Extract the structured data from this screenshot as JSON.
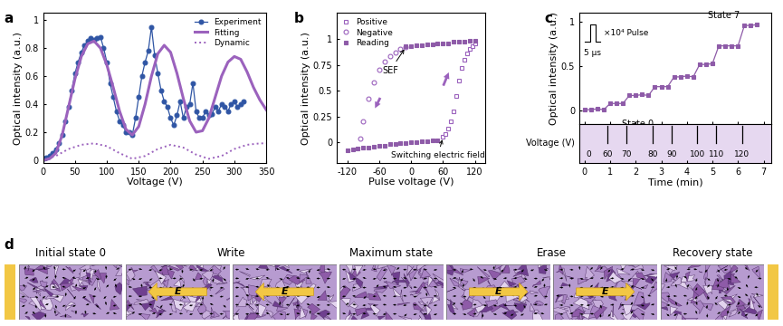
{
  "chart_data": [
    {
      "panel_label": "a",
      "type": "line",
      "x_label": "Voltage (V)",
      "y_label": "Optical intensity (a.u.)",
      "xlim": [
        0,
        350
      ],
      "xticks": [
        0,
        50,
        100,
        150,
        200,
        250,
        300,
        350
      ],
      "ylim": [
        -0.02,
        1.05
      ],
      "yticks": [
        0,
        0.2,
        0.4,
        0.6,
        0.8,
        1
      ],
      "legend": "upper right",
      "series": [
        {
          "name": "Experiment",
          "color": "#2f55a4",
          "marker": "circle",
          "line_style": "solid",
          "x": [
            0,
            5,
            10,
            15,
            20,
            25,
            30,
            35,
            40,
            45,
            50,
            55,
            60,
            65,
            70,
            75,
            80,
            85,
            90,
            95,
            100,
            105,
            110,
            115,
            120,
            125,
            130,
            135,
            140,
            145,
            150,
            155,
            160,
            165,
            170,
            175,
            180,
            185,
            190,
            195,
            200,
            205,
            210,
            215,
            220,
            225,
            230,
            235,
            240,
            245,
            250,
            255,
            260,
            265,
            270,
            275,
            280,
            285,
            290,
            295,
            300,
            305,
            310,
            315
          ],
          "values": [
            0.01,
            0.02,
            0.03,
            0.05,
            0.08,
            0.12,
            0.18,
            0.28,
            0.38,
            0.5,
            0.62,
            0.7,
            0.77,
            0.82,
            0.85,
            0.87,
            0.86,
            0.87,
            0.88,
            0.8,
            0.7,
            0.55,
            0.45,
            0.35,
            0.28,
            0.25,
            0.2,
            0.2,
            0.18,
            0.3,
            0.45,
            0.6,
            0.7,
            0.78,
            0.95,
            0.75,
            0.62,
            0.5,
            0.42,
            0.38,
            0.3,
            0.25,
            0.32,
            0.42,
            0.3,
            0.38,
            0.4,
            0.55,
            0.35,
            0.3,
            0.3,
            0.35,
            0.32,
            0.33,
            0.38,
            0.35,
            0.4,
            0.38,
            0.35,
            0.4,
            0.42,
            0.38,
            0.4,
            0.42
          ]
        },
        {
          "name": "Fitting",
          "color": "#9b62bd",
          "line_style": "solid",
          "x": [
            0,
            10,
            20,
            30,
            40,
            50,
            60,
            70,
            80,
            90,
            100,
            110,
            120,
            130,
            140,
            150,
            160,
            170,
            180,
            190,
            200,
            210,
            220,
            230,
            240,
            250,
            260,
            270,
            280,
            290,
            300,
            310,
            320,
            330,
            340,
            350
          ],
          "values": [
            0.0,
            0.01,
            0.05,
            0.18,
            0.38,
            0.58,
            0.74,
            0.83,
            0.85,
            0.8,
            0.68,
            0.52,
            0.35,
            0.22,
            0.18,
            0.24,
            0.4,
            0.6,
            0.76,
            0.82,
            0.77,
            0.62,
            0.44,
            0.28,
            0.2,
            0.21,
            0.3,
            0.45,
            0.6,
            0.7,
            0.74,
            0.72,
            0.63,
            0.52,
            0.43,
            0.36
          ]
        },
        {
          "name": "Dynamic",
          "color": "#9b62bd",
          "line_style": "dotted",
          "x": [
            0,
            20,
            40,
            60,
            80,
            100,
            120,
            140,
            160,
            180,
            200,
            220,
            240,
            260,
            280,
            300,
            320,
            340,
            350
          ],
          "values": [
            0.0,
            0.03,
            0.08,
            0.11,
            0.12,
            0.1,
            0.05,
            0.01,
            0.03,
            0.08,
            0.11,
            0.09,
            0.04,
            0.01,
            0.03,
            0.08,
            0.11,
            0.12,
            0.12
          ]
        }
      ]
    },
    {
      "panel_label": "b",
      "type": "scatter",
      "x_label": "Pulse voltage (V)",
      "y_label": "Optical intensity (a.u.)",
      "xlim": [
        -140,
        140
      ],
      "xticks": [
        -120,
        -60,
        0,
        60,
        120
      ],
      "ylim": [
        -0.2,
        1.25
      ],
      "yticks": [
        0,
        0.25,
        0.5,
        0.75,
        1
      ],
      "legend": "upper left",
      "annotations": [
        "SEF",
        "Switching electric field"
      ],
      "series": [
        {
          "name": "Positive",
          "color": "#9b62bd",
          "marker": "open_square",
          "line_style": "none",
          "x": [
            60,
            65,
            70,
            75,
            80,
            85,
            90,
            95,
            100,
            105,
            110,
            115,
            120
          ],
          "values": [
            0.05,
            0.08,
            0.13,
            0.2,
            0.3,
            0.45,
            0.6,
            0.72,
            0.8,
            0.86,
            0.9,
            0.93,
            0.96
          ]
        },
        {
          "name": "Negative",
          "color": "#9b62bd",
          "marker": "open_circle",
          "line_style": "none",
          "x": [
            -10,
            -20,
            -30,
            -40,
            -50,
            -60,
            -70,
            -80,
            -90,
            -95
          ],
          "values": [
            0.92,
            0.9,
            0.87,
            0.83,
            0.78,
            0.7,
            0.58,
            0.42,
            0.2,
            0.04
          ]
        },
        {
          "name": "Reading",
          "color": "#8e5ba8",
          "marker": "square",
          "line_style": "none",
          "x": [
            -120,
            -110,
            -100,
            -90,
            -80,
            -70,
            -60,
            -50,
            -40,
            -30,
            -20,
            -10,
            0,
            10,
            20,
            30,
            40,
            50,
            null,
            -10,
            0,
            10,
            20,
            30,
            40,
            50,
            60,
            70,
            80,
            90,
            100,
            110,
            120
          ],
          "values": [
            -0.08,
            -0.07,
            -0.06,
            -0.05,
            -0.05,
            -0.04,
            -0.03,
            -0.03,
            -0.02,
            -0.02,
            -0.01,
            -0.01,
            0.0,
            0.0,
            0.01,
            0.01,
            0.02,
            0.02,
            null,
            0.93,
            0.93,
            0.94,
            0.94,
            0.95,
            0.95,
            0.96,
            0.96,
            0.96,
            0.97,
            0.97,
            0.97,
            0.98,
            0.98
          ]
        }
      ]
    },
    {
      "panel_label": "c",
      "type": "line",
      "x_label": "Time (min)",
      "y_label": "Optical intensity (a.u.)",
      "xlim": [
        -0.2,
        7.3
      ],
      "xticks": [
        0,
        1,
        2,
        3,
        4,
        5,
        6,
        7
      ],
      "ylim": [
        -0.15,
        1.1
      ],
      "yticks": [
        0,
        0.5,
        1
      ],
      "annotations": [
        "State 0",
        "State 7"
      ],
      "pulse": {
        "text": "×10⁴ Pulse",
        "width": "5 μs"
      },
      "voltage_axis": {
        "label": "Voltage (V)",
        "time": [
          0.15,
          0.9,
          1.65,
          2.65,
          3.4,
          4.4,
          5.15,
          6.15
        ],
        "values": [
          0,
          60,
          70,
          80,
          90,
          100,
          110,
          120
        ]
      },
      "series": [
        {
          "name": "Optical intensity",
          "color": "#8e5ba8",
          "marker": "square",
          "line_style": "solid",
          "x": [
            0,
            0.25,
            0.5,
            0.75,
            1.0,
            1.25,
            1.5,
            1.75,
            2.0,
            2.25,
            2.5,
            2.75,
            3.0,
            3.25,
            3.5,
            3.75,
            4.0,
            4.25,
            4.5,
            4.75,
            5.0,
            5.25,
            5.5,
            5.75,
            6.0,
            6.25,
            6.5,
            6.75
          ],
          "values": [
            0.01,
            0.01,
            0.02,
            0.01,
            0.08,
            0.08,
            0.08,
            0.17,
            0.17,
            0.18,
            0.17,
            0.27,
            0.27,
            0.27,
            0.38,
            0.38,
            0.39,
            0.38,
            0.52,
            0.52,
            0.53,
            0.73,
            0.73,
            0.73,
            0.73,
            0.96,
            0.96,
            0.97
          ]
        }
      ]
    }
  ],
  "diagram": {
    "panel_label": "d",
    "stages": [
      {
        "label": "Initial state 0",
        "panels": 1
      },
      {
        "label": "Write",
        "panels": 2,
        "field": "E",
        "direction": "left"
      },
      {
        "label": "Maximum state",
        "panels": 1
      },
      {
        "label": "Erase",
        "panels": 2,
        "field": "E",
        "direction": "right"
      },
      {
        "label": "Recovery state",
        "panels": 1
      }
    ]
  }
}
